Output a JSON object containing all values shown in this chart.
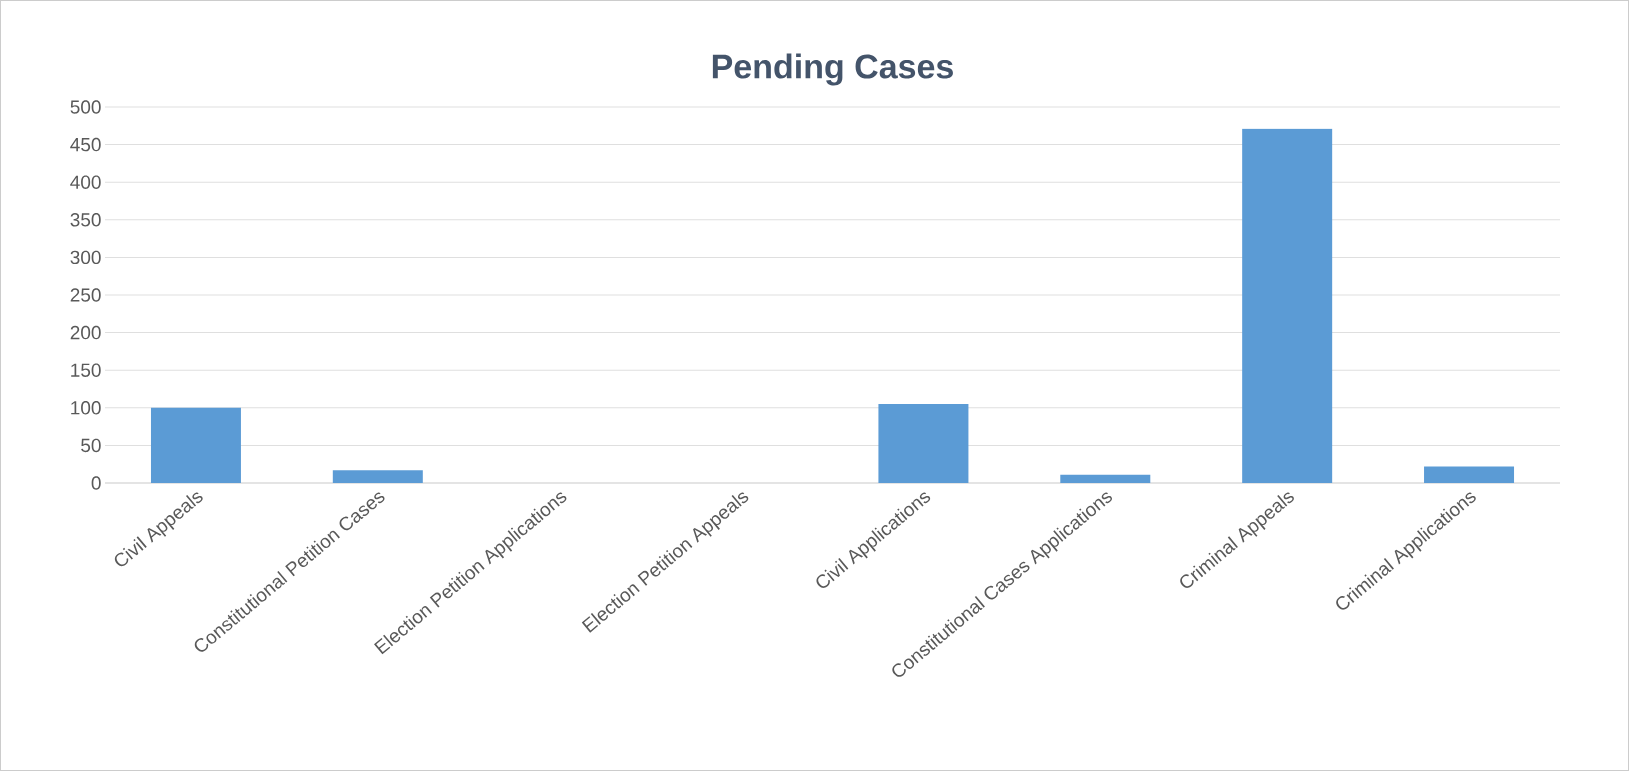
{
  "chart_data": {
    "type": "bar",
    "title": "Pending Cases",
    "categories": [
      "Civil Appeals",
      "Constitutional Petition Cases",
      "Election Petition Applications",
      "Election Petition Appeals",
      "Civil Applications",
      "Constitutional Cases Applications",
      "Criminal Appeals",
      "Criminal Applications"
    ],
    "values": [
      100,
      17,
      0,
      0,
      105,
      11,
      471,
      22
    ],
    "color": "#5b9bd5",
    "ylim": [
      0,
      500
    ],
    "yticks": [
      0,
      50,
      100,
      150,
      200,
      250,
      300,
      350,
      400,
      450,
      500
    ],
    "grid": "y"
  }
}
